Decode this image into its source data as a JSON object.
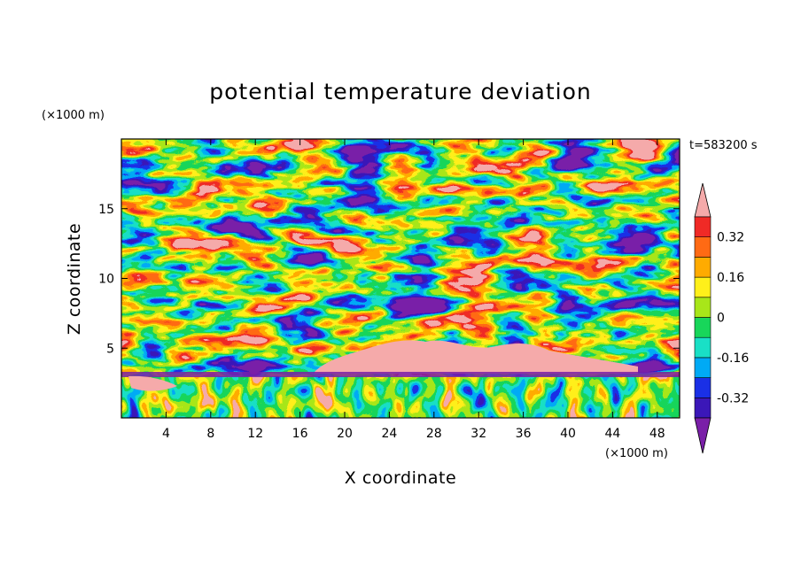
{
  "chart_data": {
    "type": "heatmap",
    "title": "potential temperature deviation",
    "xlabel": "X coordinate",
    "ylabel": "Z coordinate",
    "x_unit": "(×1000 m)",
    "y_unit": "(×1000 m)",
    "time_label": "t=583200 s",
    "xlim": [
      0,
      50
    ],
    "ylim": [
      0,
      20
    ],
    "x_ticks": [
      4,
      8,
      12,
      16,
      20,
      24,
      28,
      32,
      36,
      40,
      44,
      48
    ],
    "y_ticks": [
      5,
      10,
      15
    ],
    "colorbar": {
      "levels": [
        -0.4,
        -0.32,
        -0.24,
        -0.16,
        -0.08,
        0,
        0.08,
        0.16,
        0.24,
        0.32,
        0.4
      ],
      "labels": [
        "0.32",
        "0.16",
        "0",
        "-0.16",
        "-0.32"
      ],
      "label_values": [
        0.32,
        0.16,
        0,
        -0.16,
        -0.32
      ],
      "colors": [
        "#7a1fa8",
        "#3b17b8",
        "#1a30e6",
        "#00aaf5",
        "#19e0c6",
        "#18d65a",
        "#a8e619",
        "#fff01a",
        "#ffab00",
        "#ff6a14",
        "#f02a26",
        "#f5aaaa"
      ]
    },
    "field_regions": {
      "above_5km": "wavy horizontal layers alternating strongly positive (pink/red) and strongly negative (purple) bands",
      "near_3.5_to_5km": "broad positive plateau peaking near x=24-40",
      "below_3.5km": "convective plumes, mostly weak values"
    }
  }
}
